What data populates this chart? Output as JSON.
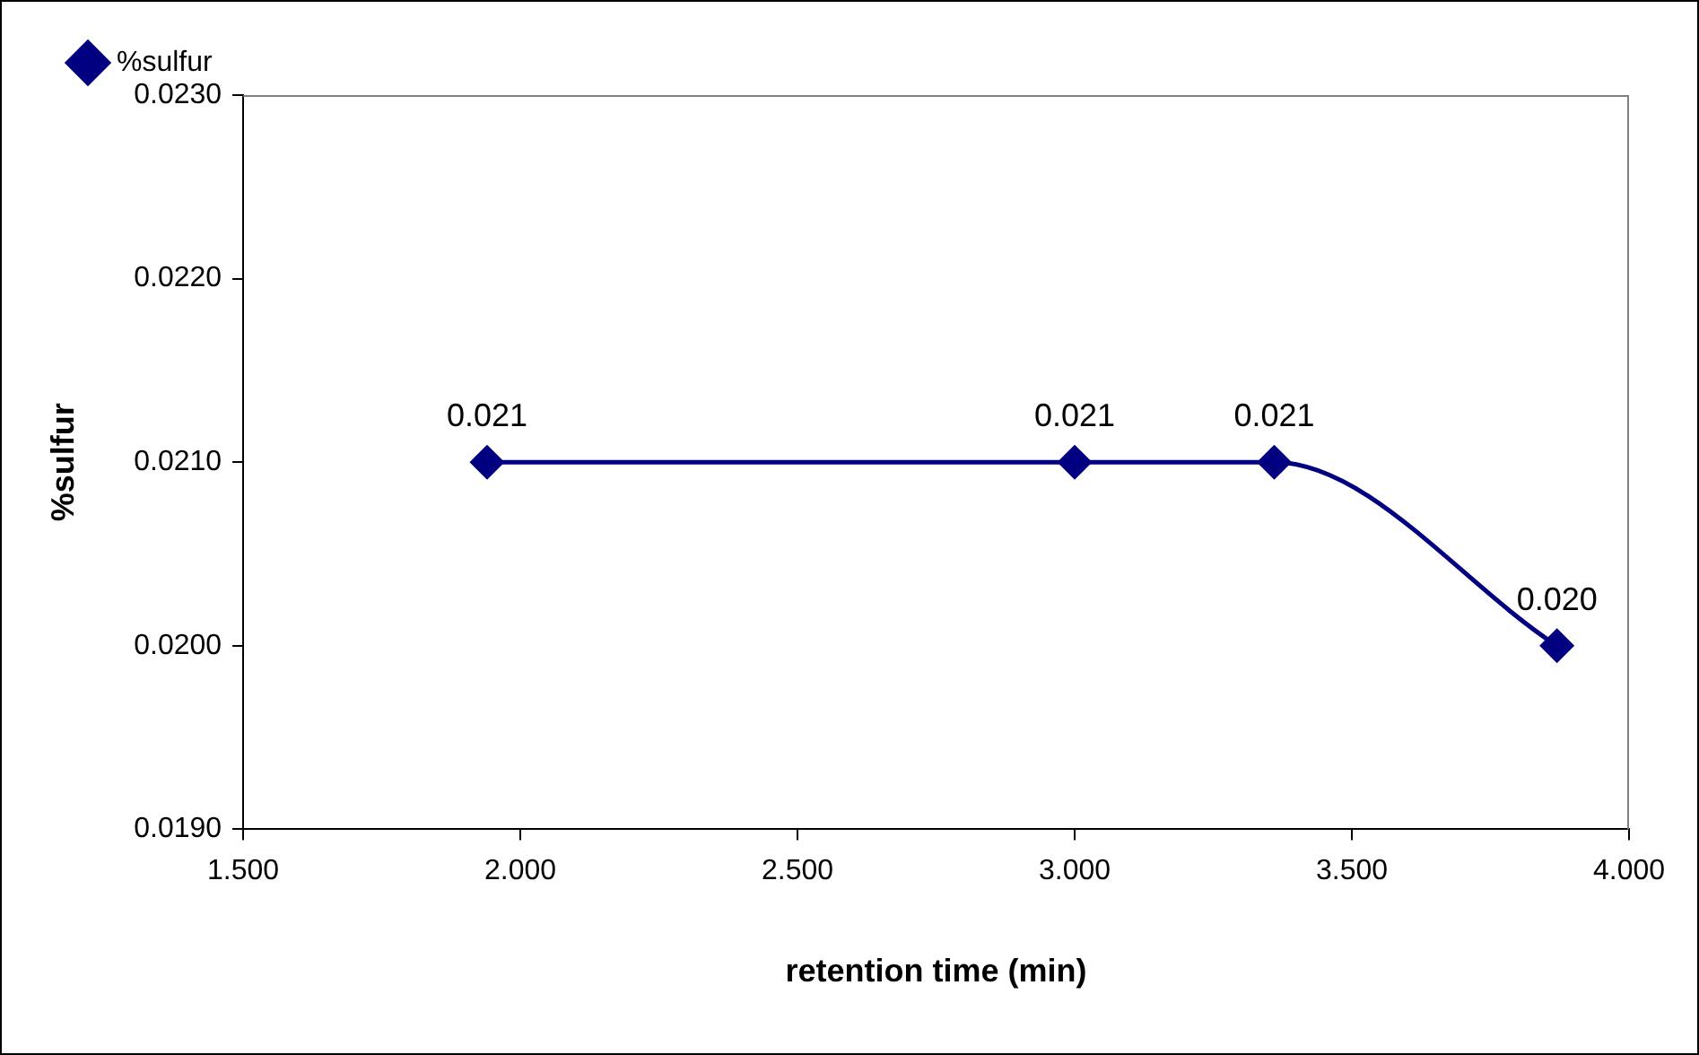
{
  "chart_data": {
    "type": "line",
    "xlabel": "retention time (min)",
    "ylabel": "%sulfur",
    "x": [
      1.94,
      3.0,
      3.36,
      3.87
    ],
    "series": [
      {
        "name": "%sulfur",
        "color": "#000080",
        "values": [
          0.021,
          0.021,
          0.021,
          0.02
        ],
        "value_labels": [
          "0.021",
          "0.021",
          "0.021",
          "0.020"
        ]
      }
    ],
    "xlim": [
      1.5,
      4.0
    ],
    "xticks": [
      {
        "value": 1.5,
        "label": "1.500"
      },
      {
        "value": 2.0,
        "label": "2.000"
      },
      {
        "value": 2.5,
        "label": "2.500"
      },
      {
        "value": 3.0,
        "label": "3.000"
      },
      {
        "value": 3.5,
        "label": "3.500"
      },
      {
        "value": 4.0,
        "label": "4.000"
      }
    ],
    "ylim": [
      0.019,
      0.023
    ],
    "yticks": [
      {
        "value": 0.019,
        "label": "0.0190"
      },
      {
        "value": 0.02,
        "label": "0.0200"
      },
      {
        "value": 0.021,
        "label": "0.0210"
      },
      {
        "value": 0.022,
        "label": "0.0220"
      },
      {
        "value": 0.023,
        "label": "0.0230"
      }
    ],
    "grid": false,
    "legend": "top left",
    "marker": "diamond",
    "line_style": "solid"
  }
}
